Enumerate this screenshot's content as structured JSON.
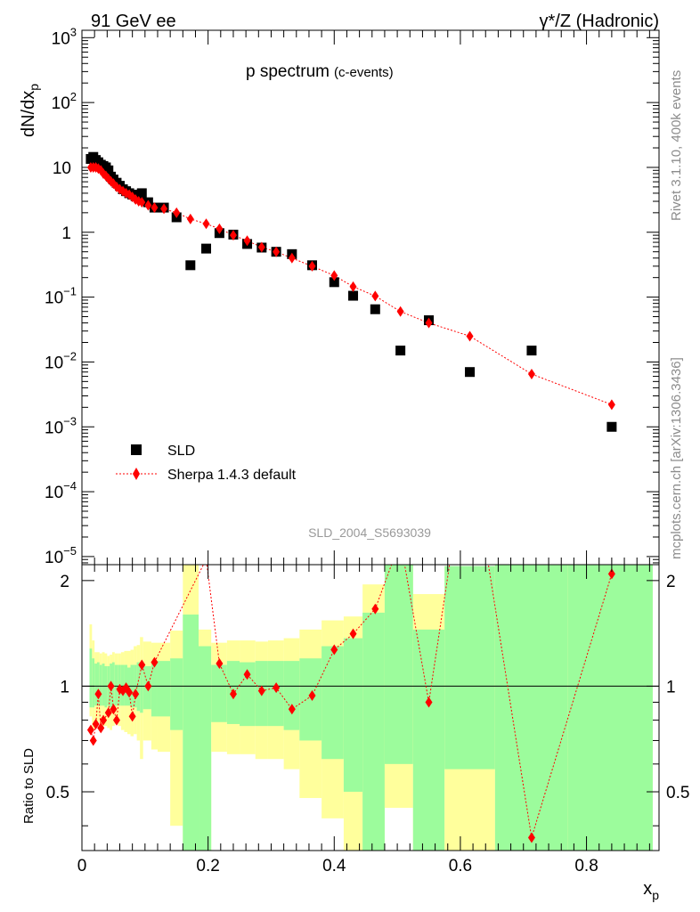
{
  "header": {
    "left": "91 GeV ee",
    "right": "γ*/Z (Hadronic)"
  },
  "side_labels": {
    "rivet": "Rivet 3.1.10,  400k events",
    "mcplots": "mcplots.cern.ch [arXiv:1306.3436]"
  },
  "chart_data": [
    {
      "type": "scatter",
      "title": "p spectrum",
      "subtitle": "(c-events)",
      "ylabel": "dN/dx_p",
      "y_scale": "log",
      "ylim": [
        7.5e-06,
        1300
      ],
      "xlim": [
        0,
        0.915
      ],
      "y_ticks": [
        {
          "value": 1000,
          "label": "10",
          "exp": "3"
        },
        {
          "value": 100,
          "label": "10",
          "exp": "2"
        },
        {
          "value": 10,
          "label": "10",
          "exp": ""
        },
        {
          "value": 1,
          "label": "1",
          "exp": ""
        },
        {
          "value": 0.1,
          "label": "10",
          "exp": "−1"
        },
        {
          "value": 0.01,
          "label": "10",
          "exp": "−2"
        },
        {
          "value": 0.001,
          "label": "10",
          "exp": "−3"
        },
        {
          "value": 0.0001,
          "label": "10",
          "exp": "−4"
        },
        {
          "value": 1e-05,
          "label": "10",
          "exp": "−5"
        }
      ],
      "watermark": "SLD_2004_S5693039",
      "legend_position": "bottom-left",
      "colors": {
        "data": "#000000",
        "mc": "#ff0000",
        "band_inner": "#9cfc9c",
        "band_outer": "#ffff9c"
      },
      "series": [
        {
          "name": "SLD",
          "marker": "square",
          "x": [
            0.014,
            0.018,
            0.022,
            0.026,
            0.03,
            0.034,
            0.038,
            0.042,
            0.046,
            0.05,
            0.055,
            0.06,
            0.065,
            0.07,
            0.075,
            0.08,
            0.085,
            0.09,
            0.095,
            0.105,
            0.115,
            0.13,
            0.15,
            0.172,
            0.197,
            0.218,
            0.24,
            0.262,
            0.285,
            0.308,
            0.333,
            0.365,
            0.4,
            0.43,
            0.465,
            0.505,
            0.55,
            0.615,
            0.713,
            0.84
          ],
          "y": [
            13.5,
            14.5,
            13.0,
            12.0,
            11.0,
            10.5,
            10.0,
            9.0,
            7.2,
            6.5,
            5.8,
            5.2,
            4.6,
            4.3,
            4.0,
            3.8,
            3.6,
            3.4,
            4.0,
            2.9,
            2.4,
            2.4,
            1.7,
            0.31,
            0.56,
            0.97,
            0.92,
            0.66,
            0.58,
            0.5,
            0.46,
            0.31,
            0.17,
            0.105,
            0.065,
            0.015,
            0.044,
            0.007,
            0.015,
            0.001
          ]
        },
        {
          "name": "Sherpa 1.4.3 default",
          "marker": "diamond",
          "x": [
            0.014,
            0.018,
            0.022,
            0.026,
            0.03,
            0.034,
            0.038,
            0.042,
            0.046,
            0.05,
            0.055,
            0.06,
            0.065,
            0.07,
            0.075,
            0.08,
            0.085,
            0.09,
            0.095,
            0.105,
            0.115,
            0.13,
            0.15,
            0.172,
            0.197,
            0.218,
            0.24,
            0.262,
            0.285,
            0.308,
            0.333,
            0.365,
            0.4,
            0.43,
            0.465,
            0.505,
            0.55,
            0.615,
            0.713,
            0.84
          ],
          "y": [
            10.0,
            10.0,
            10.0,
            9.6,
            9.0,
            8.0,
            7.4,
            6.7,
            6.1,
            5.6,
            5.0,
            4.6,
            4.3,
            4.0,
            3.8,
            3.5,
            3.2,
            3.0,
            2.9,
            2.6,
            2.4,
            2.3,
            2.0,
            1.6,
            1.35,
            1.13,
            0.9,
            0.74,
            0.59,
            0.5,
            0.4,
            0.3,
            0.215,
            0.145,
            0.104,
            0.06,
            0.04,
            0.025,
            0.0065,
            0.0022
          ]
        }
      ]
    },
    {
      "type": "scatter",
      "ylabel": "Ratio to SLD",
      "xlabel": "x_p",
      "ylim": [
        0.34,
        2.22
      ],
      "xlim": [
        0,
        0.915
      ],
      "x_ticks": [
        0,
        0.2,
        0.4,
        0.6,
        0.8
      ],
      "x_tick_labels": [
        "0",
        "0.2",
        "0.4",
        "0.6",
        "0.8"
      ],
      "y_ticks": [
        0.5,
        1,
        2
      ],
      "y_tick_labels": [
        "0.5",
        "1",
        "2"
      ],
      "reference_line": 1,
      "ratio": [
        0.75,
        0.7,
        0.78,
        0.95,
        0.76,
        0.8,
        0.84,
        1.0,
        0.86,
        0.8,
        0.98,
        0.97,
        0.99,
        0.96,
        0.82,
        0.95,
        1.15,
        1.0,
        1.17,
        2.3,
        1.16,
        0.95,
        1.08,
        0.97,
        0.99,
        0.86,
        0.94,
        1.27,
        1.41,
        1.66,
        2.6,
        0.9,
        2.7,
        2.5,
        0.37,
        2.09
      ],
      "ratio_x": [
        0.014,
        0.018,
        0.022,
        0.026,
        0.03,
        0.034,
        0.042,
        0.046,
        0.05,
        0.055,
        0.06,
        0.065,
        0.07,
        0.075,
        0.08,
        0.085,
        0.095,
        0.105,
        0.115,
        0.197,
        0.218,
        0.24,
        0.262,
        0.285,
        0.308,
        0.333,
        0.365,
        0.4,
        0.43,
        0.465,
        0.505,
        0.55,
        0.59,
        0.64,
        0.713,
        0.84
      ],
      "band_edges": [
        0.012,
        0.016,
        0.02,
        0.024,
        0.028,
        0.032,
        0.036,
        0.04,
        0.044,
        0.048,
        0.052,
        0.057,
        0.062,
        0.067,
        0.072,
        0.077,
        0.082,
        0.087,
        0.092,
        0.097,
        0.11,
        0.12,
        0.14,
        0.16,
        0.185,
        0.205,
        0.23,
        0.25,
        0.275,
        0.295,
        0.32,
        0.345,
        0.38,
        0.415,
        0.445,
        0.48,
        0.525,
        0.575,
        0.655,
        0.77,
        0.905
      ],
      "band_inner": [
        [
          0.87,
          1.28
        ],
        [
          0.87,
          1.2
        ],
        [
          0.88,
          1.16
        ],
        [
          0.88,
          1.17
        ],
        [
          0.88,
          1.15
        ],
        [
          0.88,
          1.16
        ],
        [
          0.87,
          1.14
        ],
        [
          0.88,
          1.14
        ],
        [
          0.87,
          1.16
        ],
        [
          0.87,
          1.17
        ],
        [
          0.88,
          1.15
        ],
        [
          0.88,
          1.15
        ],
        [
          0.88,
          1.15
        ],
        [
          0.88,
          1.15
        ],
        [
          0.88,
          1.13
        ],
        [
          0.87,
          1.15
        ],
        [
          0.87,
          1.15
        ],
        [
          0.85,
          1.17
        ],
        [
          0.84,
          1.17
        ],
        [
          0.86,
          1.14
        ],
        [
          0.82,
          1.18
        ],
        [
          0.82,
          1.18
        ],
        [
          0.75,
          1.2
        ],
        [
          0.34,
          1.6
        ],
        [
          0.34,
          1.3
        ],
        [
          0.79,
          1.15
        ],
        [
          0.78,
          1.18
        ],
        [
          0.77,
          1.17
        ],
        [
          0.77,
          1.18
        ],
        [
          0.77,
          1.18
        ],
        [
          0.75,
          1.18
        ],
        [
          0.7,
          1.2
        ],
        [
          0.62,
          1.3
        ],
        [
          0.5,
          1.37
        ],
        [
          0.34,
          1.62
        ],
        [
          0.6,
          2.8
        ],
        [
          0.34,
          1.45
        ],
        [
          0.58,
          2.2
        ],
        [
          0.34,
          2.3
        ],
        [
          0.34,
          2.9
        ]
      ],
      "band_outer": [
        [
          0.82,
          1.5
        ],
        [
          0.75,
          1.35
        ],
        [
          0.78,
          1.25
        ],
        [
          0.79,
          1.25
        ],
        [
          0.78,
          1.24
        ],
        [
          0.77,
          1.25
        ],
        [
          0.77,
          1.24
        ],
        [
          0.76,
          1.22
        ],
        [
          0.75,
          1.23
        ],
        [
          0.77,
          1.25
        ],
        [
          0.78,
          1.24
        ],
        [
          0.77,
          1.24
        ],
        [
          0.75,
          1.25
        ],
        [
          0.74,
          1.26
        ],
        [
          0.73,
          1.26
        ],
        [
          0.72,
          1.27
        ],
        [
          0.73,
          1.3
        ],
        [
          0.7,
          1.31
        ],
        [
          0.62,
          1.38
        ],
        [
          0.7,
          1.34
        ],
        [
          0.66,
          1.33
        ],
        [
          0.65,
          1.33
        ],
        [
          0.4,
          1.44
        ],
        [
          0.34,
          2.6
        ],
        [
          0.34,
          1.45
        ],
        [
          0.65,
          1.33
        ],
        [
          0.64,
          1.35
        ],
        [
          0.64,
          1.35
        ],
        [
          0.62,
          1.34
        ],
        [
          0.62,
          1.35
        ],
        [
          0.58,
          1.37
        ],
        [
          0.48,
          1.45
        ],
        [
          0.42,
          1.54
        ],
        [
          0.34,
          1.58
        ],
        [
          0.34,
          1.95
        ],
        [
          0.45,
          2.8
        ],
        [
          0.34,
          1.83
        ],
        [
          0.34,
          2.2
        ],
        [
          0.34,
          2.6
        ],
        [
          0.34,
          2.9
        ]
      ]
    }
  ]
}
